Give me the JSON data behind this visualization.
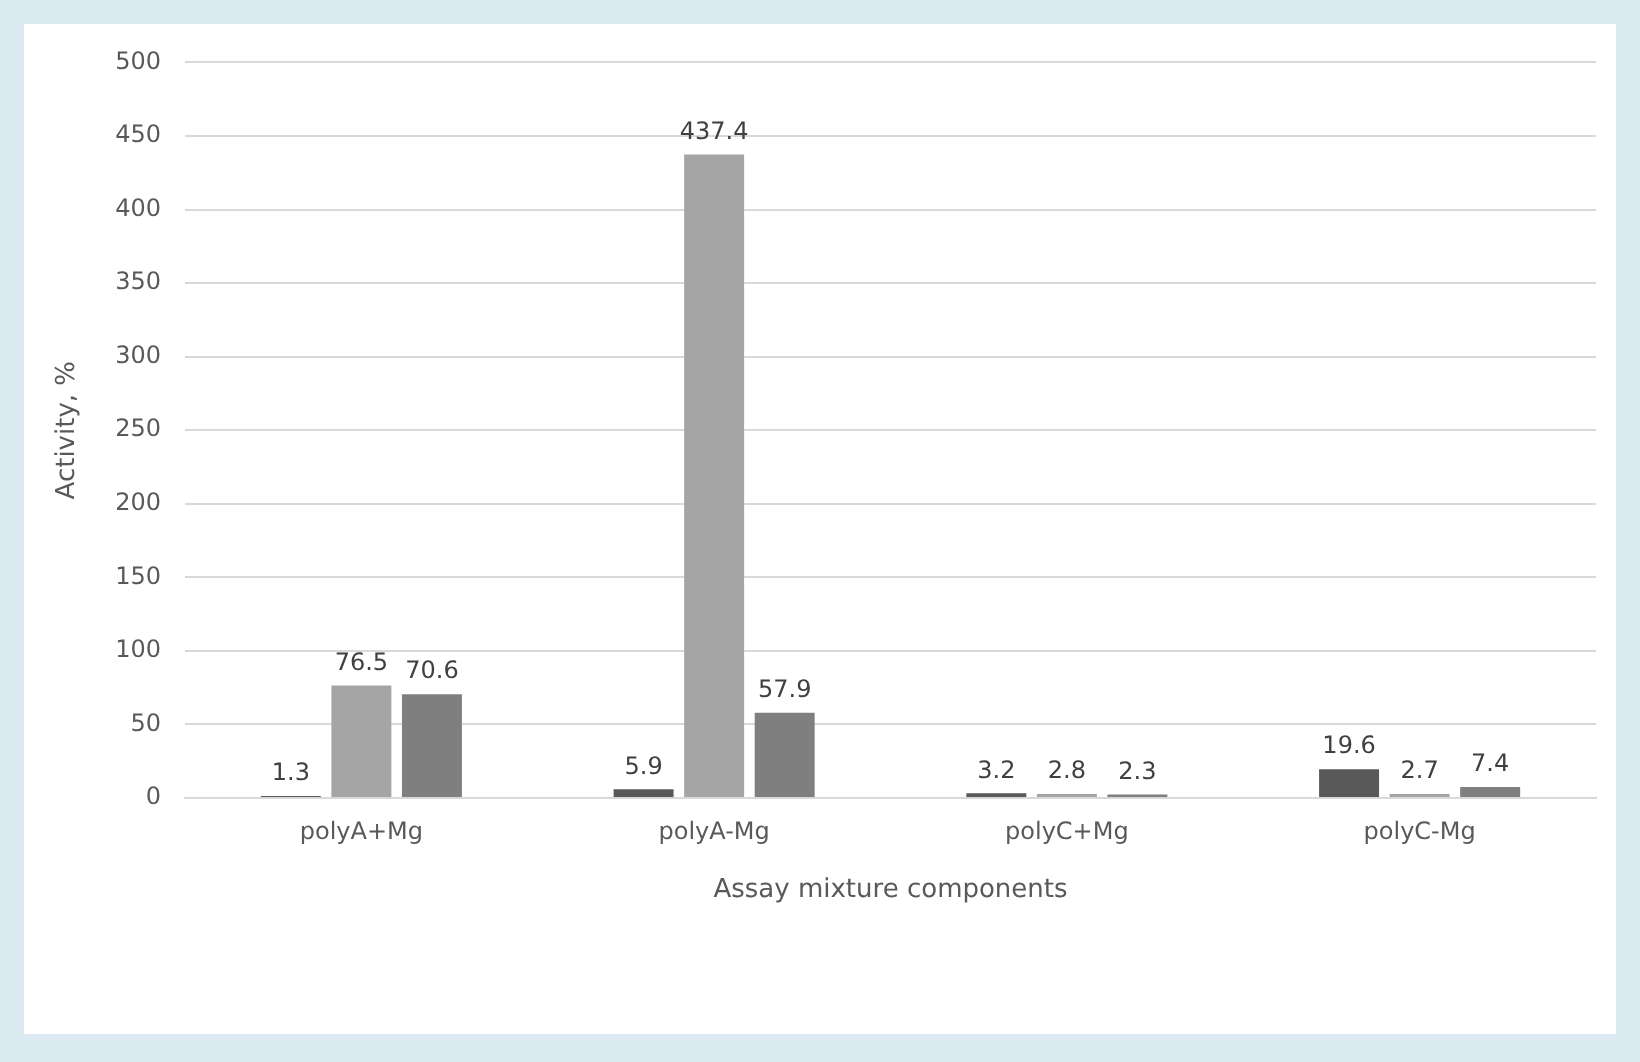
{
  "chart_data": {
    "type": "bar",
    "xlabel": "Assay mixture components",
    "ylabel": "Activity, %",
    "categories": [
      "polyA+Mg",
      "polyA-Mg",
      "polyC+Mg",
      "polyC-Mg"
    ],
    "series": [
      {
        "color": "#595959",
        "values": [
          1.3,
          5.9,
          3.2,
          19.6
        ]
      },
      {
        "color": "#a5a5a5",
        "values": [
          76.5,
          437.4,
          2.8,
          2.7
        ]
      },
      {
        "color": "#7f7f7f",
        "values": [
          70.6,
          57.9,
          2.3,
          7.4
        ]
      }
    ],
    "ylim": [
      0,
      500
    ],
    "yticks": [
      0,
      50,
      100,
      150,
      200,
      250,
      300,
      350,
      400,
      450,
      500
    ],
    "grid": "y",
    "data_labels": true,
    "legend": false
  }
}
